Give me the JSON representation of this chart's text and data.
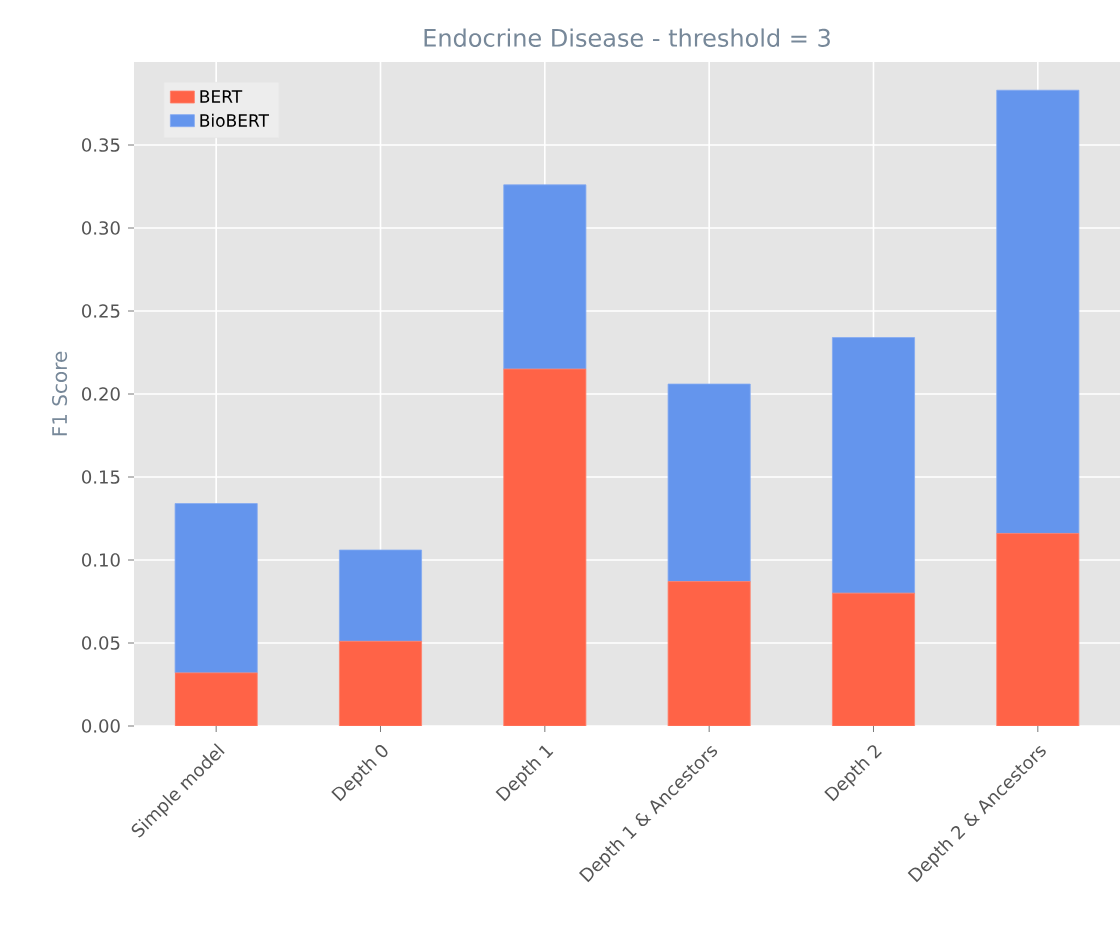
{
  "chart_data": {
    "type": "bar",
    "title": "Endocrine Disease - threshold = 3",
    "ylabel": "F1 Score",
    "categories": [
      "Simple model",
      "Depth 0",
      "Depth 1",
      "Depth 1 & Ancestors",
      "Depth 2",
      "Depth 2 & Ancestors"
    ],
    "stacked": true,
    "series": [
      {
        "name": "BERT",
        "color": "#ff6347",
        "values": [
          0.032,
          0.051,
          0.215,
          0.087,
          0.08,
          0.116
        ]
      },
      {
        "name": "BioBERT",
        "color": "#6495ed",
        "values": [
          0.102,
          0.055,
          0.111,
          0.119,
          0.154,
          0.267
        ]
      }
    ],
    "ylim": [
      0,
      0.4
    ],
    "yticks": [
      {
        "value": 0,
        "label": "0.00"
      },
      {
        "value": 0.05,
        "label": "0.05"
      },
      {
        "value": 0.1,
        "label": "0.10"
      },
      {
        "value": 0.15,
        "label": "0.15"
      },
      {
        "value": 0.2,
        "label": "0.20"
      },
      {
        "value": 0.25,
        "label": "0.25"
      },
      {
        "value": 0.3,
        "label": "0.30"
      },
      {
        "value": 0.35,
        "label": "0.35"
      }
    ],
    "grid": true,
    "legend": "top left"
  }
}
